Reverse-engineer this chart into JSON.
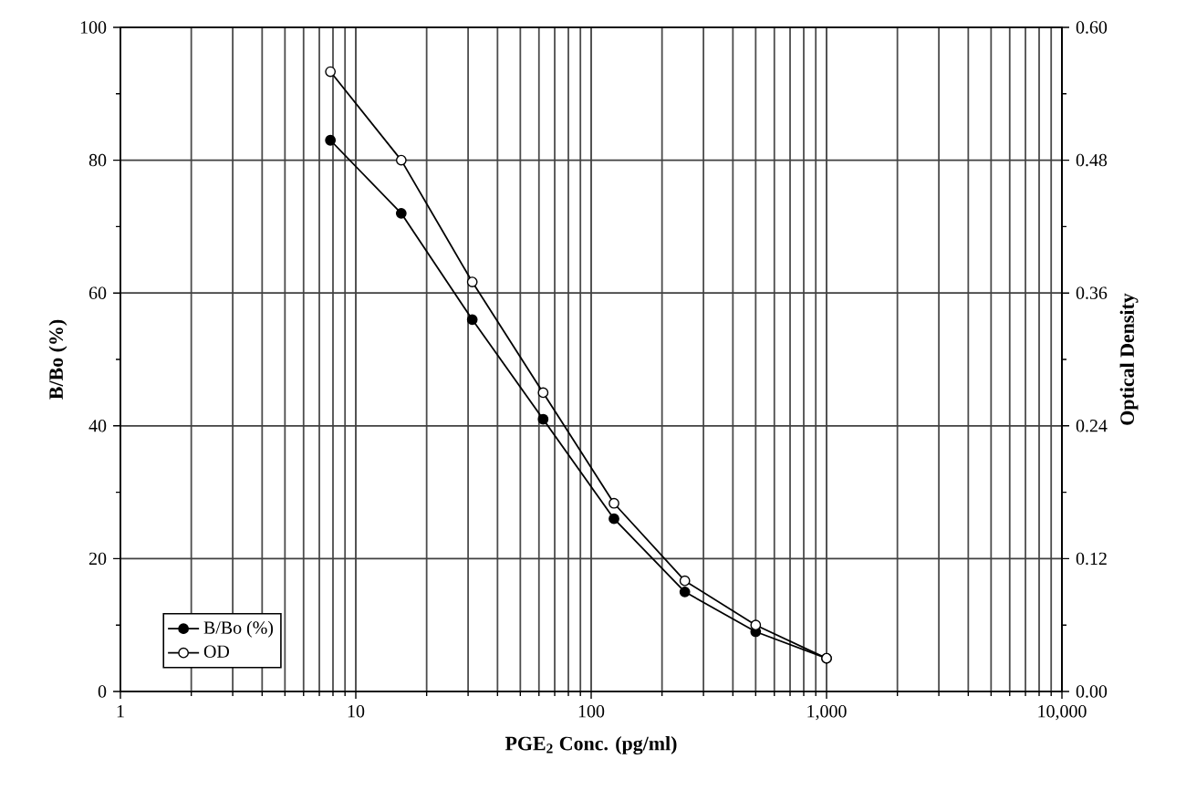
{
  "chart_data": {
    "type": "line",
    "xlabel": "PGE$_{2}$ Conc. (pg/ml)",
    "ylabel": "B/Bo (%)",
    "y2label": "Optical Density",
    "log": "x",
    "xlim": [
      1,
      10000
    ],
    "xticks": [
      1,
      10,
      100,
      {
        "value": 1000,
        "label": "1,000"
      },
      {
        "value": 10000,
        "label": "10,000"
      }
    ],
    "ylim": [
      0,
      100
    ],
    "yticks": [
      0,
      20,
      40,
      60,
      80,
      100
    ],
    "y2lim": [
      0,
      0.6
    ],
    "y2ticks": [
      {
        "value": 0,
        "label": "0.00"
      },
      0.12,
      0.24,
      0.36,
      0.48,
      {
        "value": 0.6,
        "label": "0.60"
      }
    ],
    "x": [
      7.8,
      15.6,
      31.25,
      62.5,
      125,
      250,
      500,
      1000
    ],
    "series": [
      {
        "name": "B/Bo (%)",
        "color": "#000000",
        "values": [
          83,
          72,
          56,
          41,
          26,
          15,
          9,
          5
        ]
      },
      {
        "name": "OD",
        "color": "#000000",
        "axis": "y2",
        "values": [
          0.56,
          0.48,
          0.37,
          0.27,
          0.17,
          0.1,
          0.06,
          0.03
        ]
      }
    ],
    "grid": true,
    "legend": "bottom left",
    "marker": "circle",
    "line_style": "solid"
  }
}
